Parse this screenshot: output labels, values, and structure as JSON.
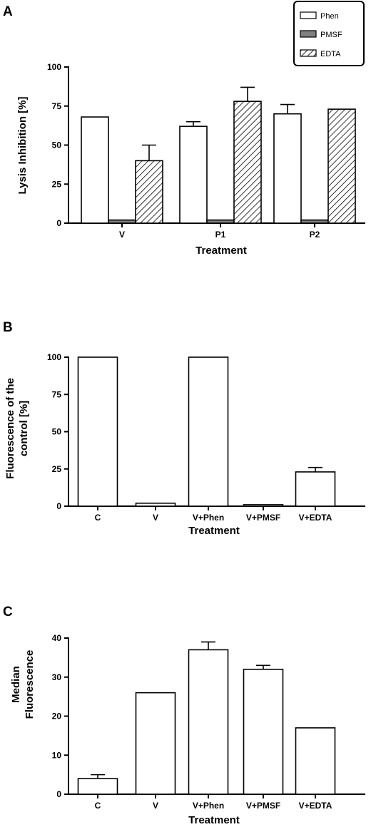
{
  "chart_data": [
    {
      "panel": "A",
      "type": "bar",
      "categories": [
        "V",
        "P1",
        "P2"
      ],
      "series": [
        {
          "name": "Phen",
          "values": [
            68,
            62,
            70
          ],
          "errors": [
            0,
            3,
            6
          ],
          "fill": "#ffffff"
        },
        {
          "name": "PMSF",
          "values": [
            2,
            2,
            2
          ],
          "errors": [
            0,
            0,
            0
          ],
          "fill": "#808080"
        },
        {
          "name": "EDTA",
          "values": [
            40,
            78,
            73
          ],
          "errors": [
            10,
            9,
            0
          ],
          "fill": "hatch"
        }
      ],
      "xlabel": "Treatment",
      "ylabel": "Lysis Inhibition [%]",
      "ylim": [
        0,
        100
      ],
      "yticks": [
        "0",
        "25",
        "50",
        "75",
        "100"
      ],
      "legend": "top-right"
    },
    {
      "panel": "B",
      "type": "bar",
      "categories": [
        "C",
        "V",
        "V+Phen",
        "V+PMSF",
        "V+EDTA"
      ],
      "values": [
        100,
        2,
        100,
        1,
        23
      ],
      "errors": [
        0,
        0,
        0,
        0,
        3
      ],
      "xlabel": "Treatment",
      "ylabel_lines": [
        "Fluorescence of the",
        "control [%]"
      ],
      "ylim": [
        0,
        100
      ],
      "yticks": [
        "0",
        "25",
        "50",
        "75",
        "100"
      ]
    },
    {
      "panel": "C",
      "type": "bar",
      "categories": [
        "C",
        "V",
        "V+Phen",
        "V+PMSF",
        "V+EDTA"
      ],
      "values": [
        4,
        26,
        37,
        32,
        17
      ],
      "errors": [
        1,
        0,
        2,
        1,
        0
      ],
      "xlabel": "Treatment",
      "ylabel_lines": [
        "Median",
        "Fluorescence"
      ],
      "ylim": [
        0,
        40
      ],
      "yticks": [
        "0",
        "10",
        "20",
        "30",
        "40"
      ]
    }
  ]
}
